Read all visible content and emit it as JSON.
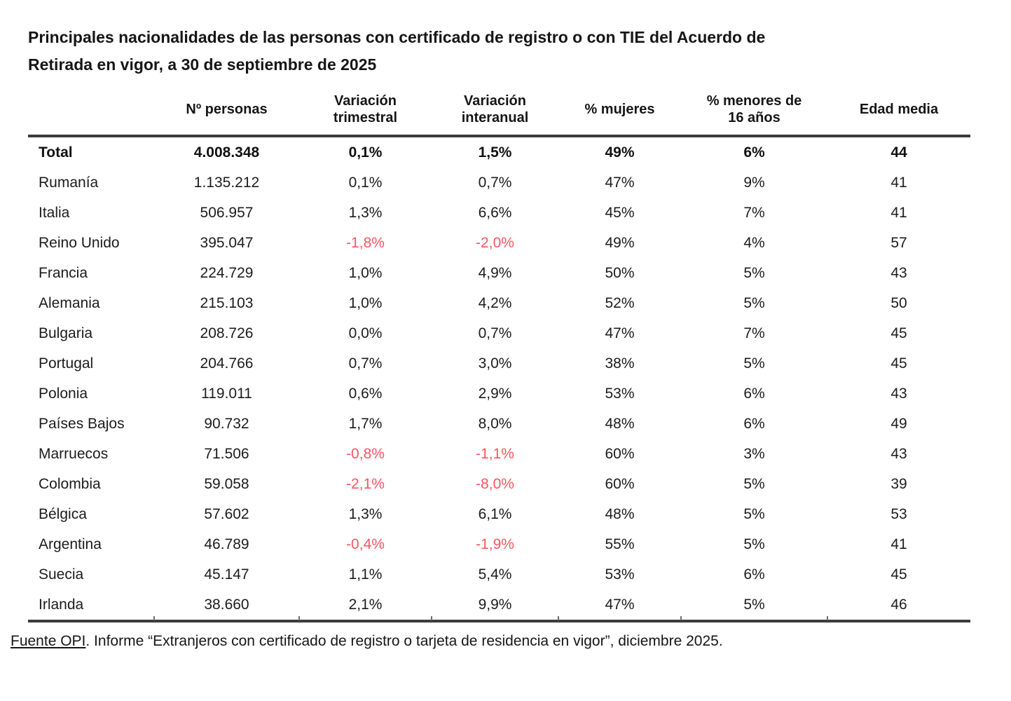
{
  "title": "Principales nacionalidades de las personas con certificado de registro o con TIE del Acuerdo de\nRetirada en vigor, a 30 de septiembre de 2025",
  "table": {
    "columns": [
      "",
      "Nº personas",
      "Variación\ntrimestral",
      "Variación\ninteranual",
      "% mujeres",
      "% menores de\n16 años",
      "Edad media"
    ],
    "rows": [
      {
        "cells": [
          "Total",
          "4.008.348",
          "0,1%",
          "1,5%",
          "49%",
          "6%",
          "44"
        ],
        "bold": true
      },
      {
        "cells": [
          "Rumanía",
          "1.135.212",
          "0,1%",
          "0,7%",
          "47%",
          "9%",
          "41"
        ],
        "bold": false
      },
      {
        "cells": [
          "Italia",
          "506.957",
          "1,3%",
          "6,6%",
          "45%",
          "7%",
          "41"
        ],
        "bold": false
      },
      {
        "cells": [
          "Reino Unido",
          "395.047",
          "-1,8%",
          "-2,0%",
          "49%",
          "4%",
          "57"
        ],
        "bold": false
      },
      {
        "cells": [
          "Francia",
          "224.729",
          "1,0%",
          "4,9%",
          "50%",
          "5%",
          "43"
        ],
        "bold": false
      },
      {
        "cells": [
          "Alemania",
          "215.103",
          "1,0%",
          "4,2%",
          "52%",
          "5%",
          "50"
        ],
        "bold": false
      },
      {
        "cells": [
          "Bulgaria",
          "208.726",
          "0,0%",
          "0,7%",
          "47%",
          "7%",
          "45"
        ],
        "bold": false
      },
      {
        "cells": [
          "Portugal",
          "204.766",
          "0,7%",
          "3,0%",
          "38%",
          "5%",
          "45"
        ],
        "bold": false
      },
      {
        "cells": [
          "Polonia",
          "119.011",
          "0,6%",
          "2,9%",
          "53%",
          "6%",
          "43"
        ],
        "bold": false
      },
      {
        "cells": [
          "Países Bajos",
          "90.732",
          "1,7%",
          "8,0%",
          "48%",
          "6%",
          "49"
        ],
        "bold": false
      },
      {
        "cells": [
          "Marruecos",
          "71.506",
          "-0,8%",
          "-1,1%",
          "60%",
          "3%",
          "43"
        ],
        "bold": false
      },
      {
        "cells": [
          "Colombia",
          "59.058",
          "-2,1%",
          "-8,0%",
          "60%",
          "5%",
          "39"
        ],
        "bold": false
      },
      {
        "cells": [
          "Bélgica",
          "57.602",
          "1,3%",
          "6,1%",
          "48%",
          "5%",
          "53"
        ],
        "bold": false
      },
      {
        "cells": [
          "Argentina",
          "46.789",
          "-0,4%",
          "-1,9%",
          "55%",
          "5%",
          "41"
        ],
        "bold": false
      },
      {
        "cells": [
          "Suecia",
          "45.147",
          "1,1%",
          "5,4%",
          "53%",
          "6%",
          "45"
        ],
        "bold": false
      },
      {
        "cells": [
          "Irlanda",
          "38.660",
          "2,1%",
          "9,9%",
          "47%",
          "5%",
          "46"
        ],
        "bold": false
      }
    ]
  },
  "footer": {
    "source_label": "Fuente OPI",
    "source_rest": ". Informe “Extranjeros con certificado de registro o tarjeta de residencia en vigor”, diciembre 2025."
  },
  "colors": {
    "negative": "#fa5560",
    "text": "#1c1c1c",
    "rule": "#3c3c3c"
  }
}
